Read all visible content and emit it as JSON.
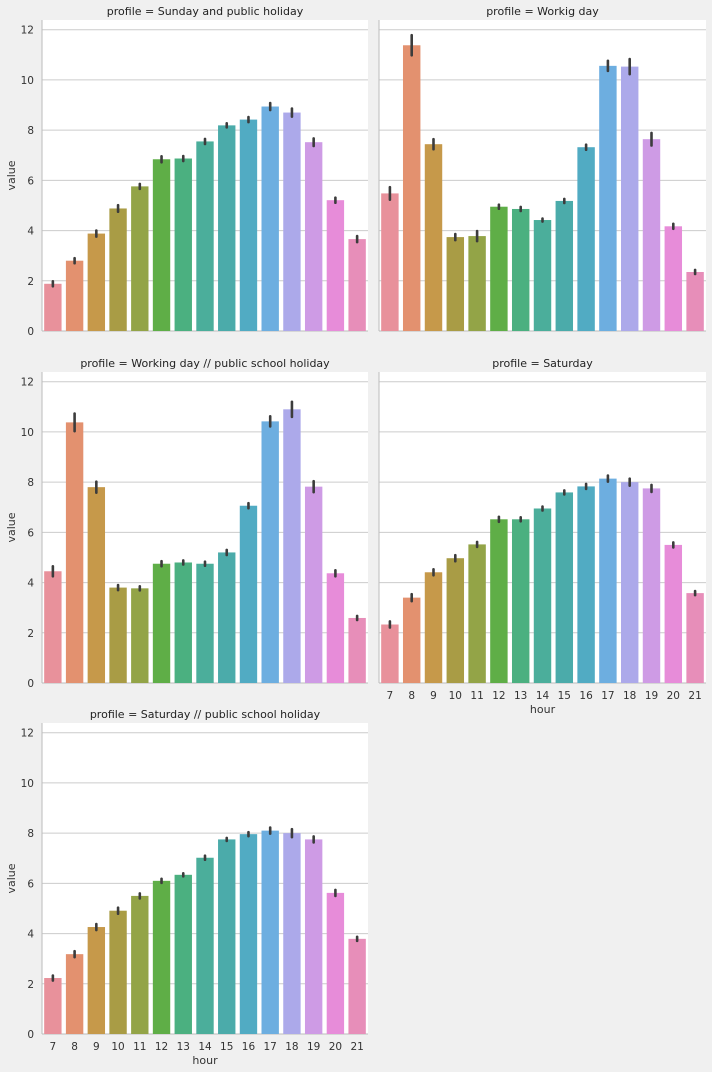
{
  "chart_data": {
    "type": "bar",
    "layout": "facet-grid 3x2",
    "categories": [
      "7",
      "8",
      "9",
      "10",
      "11",
      "12",
      "13",
      "14",
      "15",
      "16",
      "17",
      "18",
      "19",
      "20",
      "21"
    ],
    "xlabel": "hour",
    "ylabel": "value",
    "ylim": [
      0,
      12.4
    ],
    "yticks": [
      "0",
      "2",
      "4",
      "6",
      "8",
      "10",
      "12"
    ],
    "grid": "horizontal",
    "bar_colors": [
      "#e8919b",
      "#e3916f",
      "#c6994a",
      "#a99c45",
      "#93a447",
      "#5fae47",
      "#4bb080",
      "#4bae9b",
      "#4babaa",
      "#51abc3",
      "#6daee0",
      "#aca9ea",
      "#ce9be5",
      "#e78cd9",
      "#e78eb9"
    ],
    "panels": [
      {
        "title": "profile = Sunday and public holiday",
        "values": [
          1.88,
          2.8,
          3.88,
          4.88,
          5.76,
          6.84,
          6.87,
          7.55,
          8.19,
          8.42,
          8.94,
          8.7,
          7.52,
          5.21,
          3.66
        ],
        "ci": [
          0.1,
          0.1,
          0.12,
          0.13,
          0.1,
          0.12,
          0.1,
          0.1,
          0.08,
          0.1,
          0.14,
          0.16,
          0.15,
          0.1,
          0.12
        ]
      },
      {
        "title": "profile = Workig day",
        "values": [
          5.48,
          11.38,
          7.44,
          3.74,
          3.78,
          4.95,
          4.86,
          4.42,
          5.18,
          7.32,
          10.56,
          10.53,
          7.64,
          4.17,
          2.35
        ],
        "ci": [
          0.25,
          0.4,
          0.2,
          0.12,
          0.2,
          0.08,
          0.08,
          0.06,
          0.08,
          0.1,
          0.2,
          0.3,
          0.25,
          0.1,
          0.08
        ]
      },
      {
        "title": "profile = Working day // public school holiday",
        "values": [
          4.45,
          10.38,
          7.8,
          3.8,
          3.77,
          4.75,
          4.8,
          4.75,
          5.2,
          7.06,
          10.42,
          10.9,
          7.82,
          4.37,
          2.59
        ],
        "ci": [
          0.2,
          0.35,
          0.22,
          0.1,
          0.08,
          0.1,
          0.08,
          0.08,
          0.1,
          0.1,
          0.2,
          0.3,
          0.22,
          0.12,
          0.08
        ]
      },
      {
        "title": "profile = Saturday",
        "values": [
          2.33,
          3.4,
          4.41,
          4.97,
          5.52,
          6.52,
          6.52,
          6.95,
          7.59,
          7.83,
          8.14,
          8.0,
          7.75,
          5.5,
          3.58
        ],
        "ci": [
          0.12,
          0.14,
          0.12,
          0.12,
          0.1,
          0.1,
          0.08,
          0.08,
          0.08,
          0.1,
          0.12,
          0.14,
          0.14,
          0.1,
          0.08
        ]
      },
      {
        "title": "profile = Saturday // public school holiday",
        "values": [
          2.23,
          3.18,
          4.26,
          4.91,
          5.5,
          6.1,
          6.34,
          7.02,
          7.75,
          7.96,
          8.1,
          8.0,
          7.75,
          5.62,
          3.79
        ],
        "ci": [
          0.1,
          0.12,
          0.12,
          0.12,
          0.1,
          0.08,
          0.06,
          0.08,
          0.06,
          0.08,
          0.12,
          0.16,
          0.12,
          0.12,
          0.08
        ]
      }
    ]
  }
}
